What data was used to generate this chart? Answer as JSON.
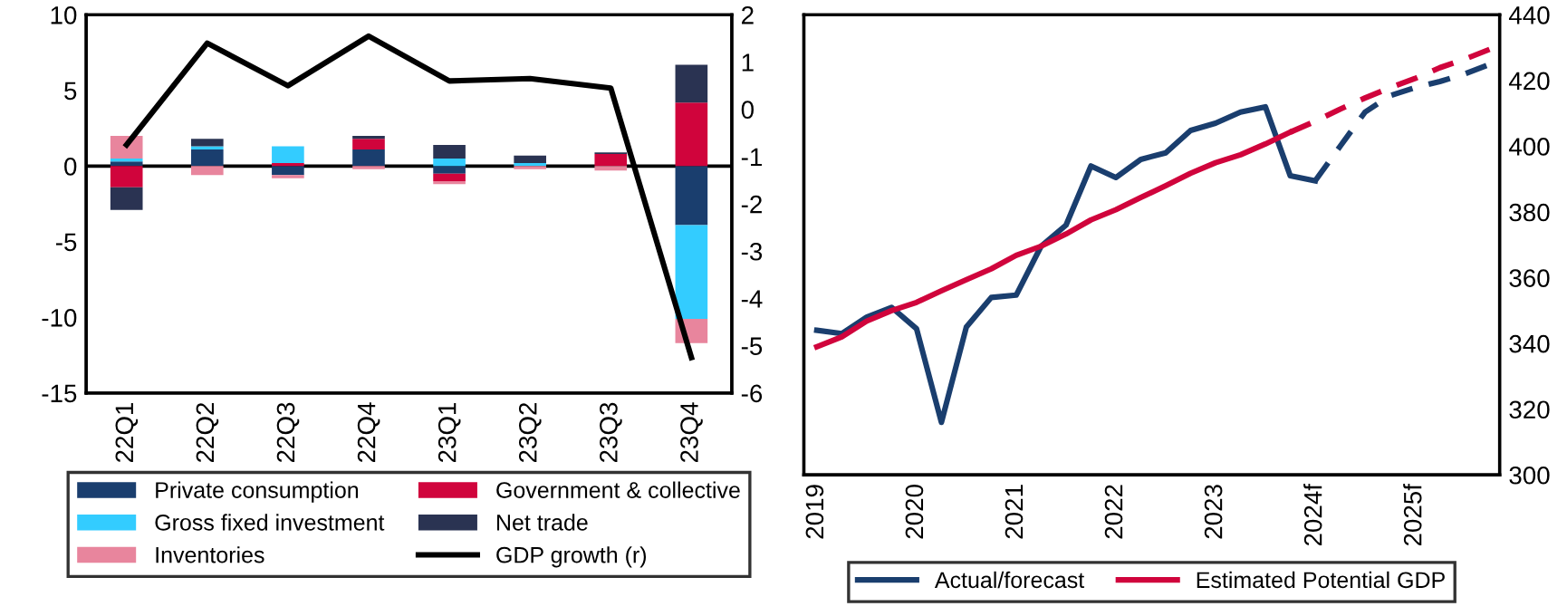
{
  "chart_data": [
    {
      "type": "bar",
      "stacked": true,
      "categories": [
        "22Q1",
        "22Q2",
        "22Q3",
        "22Q4",
        "23Q1",
        "23Q2",
        "23Q3",
        "23Q4"
      ],
      "series": [
        {
          "name": "Private consumption",
          "color": "#1a3e6e",
          "values": [
            0.3,
            1.1,
            -0.6,
            1.1,
            -0.5,
            0,
            0,
            -3.9
          ]
        },
        {
          "name": "Government & collective",
          "color": "#d0043c",
          "values": [
            -1.4,
            0,
            0.2,
            0.7,
            -0.5,
            0,
            0.8,
            4.2
          ]
        },
        {
          "name": "Gross fixed investment",
          "color": "#33ccff",
          "values": [
            0.2,
            0.2,
            1.1,
            0,
            0.5,
            0.2,
            0,
            -6.2
          ]
        },
        {
          "name": "Net trade",
          "color": "#2a3352",
          "values": [
            -1.5,
            0.5,
            0,
            0.2,
            0.9,
            0.5,
            0.1,
            2.5
          ]
        },
        {
          "name": "Inventories",
          "color": "#e8859d",
          "values": [
            1.5,
            -0.6,
            -0.2,
            -0.2,
            -0.2,
            -0.2,
            -0.3,
            -1.6
          ]
        },
        {
          "name": "GDP growth (r)",
          "type": "line",
          "axis": "y2",
          "color": "#000000",
          "values": [
            -0.75,
            1.4,
            0.5,
            1.55,
            0.6,
            0.65,
            0.45,
            -5.25
          ]
        }
      ],
      "ylim": [
        -15,
        10
      ],
      "yticks": [
        -15,
        -10,
        -5,
        0,
        5,
        10
      ],
      "y2lim": [
        -6,
        2
      ],
      "y2ticks": [
        -6,
        -5,
        -4,
        -3,
        -2,
        -1,
        0,
        1,
        2
      ],
      "ref_lines": [
        {
          "axis": "y",
          "value": 0,
          "color": "#000000"
        }
      ],
      "legend": "bottom",
      "grid": false
    },
    {
      "type": "line",
      "series": [
        {
          "name": "Actual/forecast",
          "color": "#1a3e6e",
          "line_style": "solid",
          "axis": "y2",
          "x": [
            2019.0,
            2019.25,
            2019.5,
            2019.75,
            2020.0,
            2020.25,
            2020.5,
            2020.75,
            2021.0,
            2021.25,
            2021.5,
            2021.75,
            2022.0,
            2022.25,
            2022.5,
            2022.75,
            2023.0,
            2023.25,
            2023.5,
            2023.75,
            2024.0
          ],
          "values": [
            344,
            343,
            348,
            351,
            344.5,
            316,
            345,
            354,
            354.7,
            369.6,
            376,
            394,
            390.5,
            396,
            398,
            404.8,
            407,
            410.4,
            412,
            391,
            389.5
          ]
        },
        {
          "color": "#1a3e6e",
          "line_style": "dashed",
          "axis": "y2",
          "x": [
            2024.0,
            2024.25,
            2024.5,
            2024.75,
            2025.0,
            2025.25,
            2025.5,
            2025.75
          ],
          "values": [
            389.5,
            400,
            410.4,
            415.4,
            417.8,
            419.7,
            422,
            424.9
          ]
        },
        {
          "name": "Estimated Potential GDP",
          "color": "#d0043c",
          "line_style": "solid",
          "axis": "y2",
          "x": [
            2019.0,
            2019.25,
            2019.5,
            2019.75,
            2020.0,
            2020.25,
            2020.5,
            2020.75,
            2021.0,
            2021.25,
            2021.5,
            2021.75,
            2022.0,
            2022.25,
            2022.5,
            2022.75,
            2023.0,
            2023.25,
            2023.5,
            2023.75
          ],
          "values": [
            339,
            342,
            346.8,
            350,
            352.5,
            356,
            359.4,
            362.7,
            366.8,
            369.6,
            373.3,
            377.6,
            380.7,
            384.4,
            388,
            391.8,
            395,
            397.4,
            400.7,
            404.3
          ]
        },
        {
          "color": "#d0043c",
          "line_style": "dashed",
          "axis": "y2",
          "x": [
            2023.75,
            2024.0,
            2024.25,
            2024.5,
            2024.75,
            2025.0,
            2025.25,
            2025.5,
            2025.75
          ],
          "values": [
            404.3,
            407.6,
            411.3,
            414.7,
            417.8,
            420.6,
            423.9,
            426.5,
            429.5
          ]
        }
      ],
      "xlim": [
        2018.87,
        2025.85
      ],
      "xticks": [
        2019,
        2020,
        2021,
        2022,
        2023,
        {
          "value": 2024,
          "label": "2024f"
        },
        {
          "value": 2025,
          "label": "2025f"
        }
      ],
      "y2lim": [
        300,
        440
      ],
      "y2ticks": [
        300,
        320,
        340,
        360,
        380,
        400,
        420,
        440
      ],
      "legend": "bottom",
      "grid": false
    }
  ]
}
